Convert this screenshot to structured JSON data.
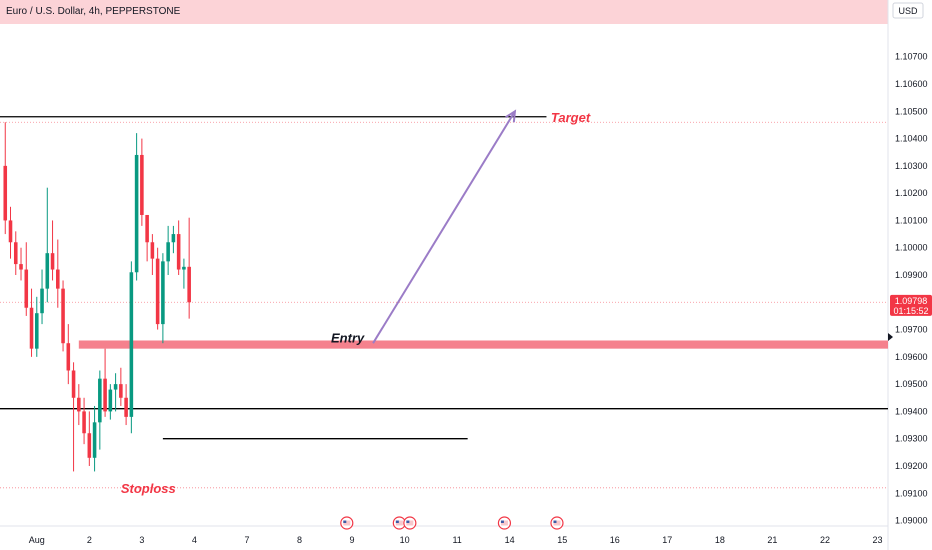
{
  "header": {
    "title": "Euro / U.S. Dollar, 4h, PEPPERSTONE",
    "currency": "USD",
    "banner_color": "#fcd3d7"
  },
  "price_label": {
    "price": "1.09798",
    "countdown": "01:15:52",
    "color": "#f23645"
  },
  "annotations": {
    "target": "Target",
    "entry": "Entry",
    "stoploss": "Stoploss",
    "target_color": "#f23645",
    "stoploss_color": "#f23645",
    "entry_color": "#131722",
    "arrow_color": "#9b7cc7",
    "zone_color": "#f5818d"
  },
  "event_icons": [
    {
      "name": "us-flag-icon",
      "x_index": 65
    },
    {
      "name": "us-flag-icon",
      "x_index": 75
    },
    {
      "name": "us-flag-icon",
      "x_index": 77
    },
    {
      "name": "us-flag-icon",
      "x_index": 95
    },
    {
      "name": "us-flag-icon",
      "x_index": 105
    }
  ],
  "chart_data": {
    "type": "candlestick",
    "title": "Euro / U.S. Dollar, 4h, PEPPERSTONE",
    "ylim": [
      1.0898,
      1.1082
    ],
    "yticks": [
      1.09,
      1.091,
      1.092,
      1.093,
      1.094,
      1.095,
      1.096,
      1.097,
      1.098,
      1.099,
      1.1,
      1.101,
      1.102,
      1.103,
      1.104,
      1.105,
      1.106,
      1.107
    ],
    "ytick_labels": [
      "1.09000",
      "1.09100",
      "1.09200",
      "1.09300",
      "1.09400",
      "1.09500",
      "1.09600",
      "1.09700",
      "1.09800",
      "1.09900",
      "1.10000",
      "1.10100",
      "1.10200",
      "1.10300",
      "1.10400",
      "1.10500",
      "1.10600",
      "1.10700"
    ],
    "xlim": [
      -1,
      168
    ],
    "xticks": [
      {
        "label": "Aug",
        "index": 6
      },
      {
        "label": "2",
        "index": 16
      },
      {
        "label": "3",
        "index": 26
      },
      {
        "label": "4",
        "index": 36
      },
      {
        "label": "7",
        "index": 46
      },
      {
        "label": "8",
        "index": 56
      },
      {
        "label": "9",
        "index": 66
      },
      {
        "label": "10",
        "index": 76
      },
      {
        "label": "11",
        "index": 86
      },
      {
        "label": "14",
        "index": 96
      },
      {
        "label": "15",
        "index": 106
      },
      {
        "label": "16",
        "index": 116
      },
      {
        "label": "17",
        "index": 126
      },
      {
        "label": "18",
        "index": 136
      },
      {
        "label": "21",
        "index": 146
      },
      {
        "label": "22",
        "index": 156
      },
      {
        "label": "23",
        "index": 166
      }
    ],
    "up_color": "#089981",
    "down_color": "#f23645",
    "candles": [
      {
        "o": 1.103,
        "h": 1.1046,
        "l": 1.1005,
        "c": 1.101
      },
      {
        "o": 1.101,
        "h": 1.1015,
        "l": 1.0996,
        "c": 1.1002
      },
      {
        "o": 1.1002,
        "h": 1.1006,
        "l": 1.099,
        "c": 1.0994
      },
      {
        "o": 1.0994,
        "h": 1.1,
        "l": 1.0988,
        "c": 1.0992
      },
      {
        "o": 1.0992,
        "h": 1.1002,
        "l": 1.0975,
        "c": 1.0978
      },
      {
        "o": 1.0978,
        "h": 1.0985,
        "l": 1.096,
        "c": 1.0963
      },
      {
        "o": 1.0963,
        "h": 1.0982,
        "l": 1.096,
        "c": 1.0976
      },
      {
        "o": 1.0976,
        "h": 1.0992,
        "l": 1.0972,
        "c": 1.0985
      },
      {
        "o": 1.0985,
        "h": 1.1022,
        "l": 1.098,
        "c": 1.0998
      },
      {
        "o": 1.0998,
        "h": 1.101,
        "l": 1.0988,
        "c": 1.0992
      },
      {
        "o": 1.0992,
        "h": 1.1003,
        "l": 1.0978,
        "c": 1.0985
      },
      {
        "o": 1.0985,
        "h": 1.0988,
        "l": 1.0962,
        "c": 1.0965
      },
      {
        "o": 1.0965,
        "h": 1.0972,
        "l": 1.095,
        "c": 1.0955
      },
      {
        "o": 1.0955,
        "h": 1.0958,
        "l": 1.0918,
        "c": 1.0945
      },
      {
        "o": 1.0945,
        "h": 1.095,
        "l": 1.0935,
        "c": 1.094
      },
      {
        "o": 1.094,
        "h": 1.0945,
        "l": 1.0928,
        "c": 1.0932
      },
      {
        "o": 1.0932,
        "h": 1.094,
        "l": 1.092,
        "c": 1.0923
      },
      {
        "o": 1.0923,
        "h": 1.0942,
        "l": 1.0918,
        "c": 1.0936
      },
      {
        "o": 1.0936,
        "h": 1.0955,
        "l": 1.0926,
        "c": 1.0952
      },
      {
        "o": 1.0952,
        "h": 1.0963,
        "l": 1.0938,
        "c": 1.094
      },
      {
        "o": 1.094,
        "h": 1.095,
        "l": 1.0937,
        "c": 1.0948
      },
      {
        "o": 1.0948,
        "h": 1.0954,
        "l": 1.094,
        "c": 1.095
      },
      {
        "o": 1.095,
        "h": 1.0956,
        "l": 1.0942,
        "c": 1.0945
      },
      {
        "o": 1.0945,
        "h": 1.095,
        "l": 1.0935,
        "c": 1.0938
      },
      {
        "o": 1.0938,
        "h": 1.0995,
        "l": 1.0932,
        "c": 1.0991
      },
      {
        "o": 1.0991,
        "h": 1.1042,
        "l": 1.0988,
        "c": 1.1034
      },
      {
        "o": 1.1034,
        "h": 1.104,
        "l": 1.1008,
        "c": 1.1012
      },
      {
        "o": 1.1012,
        "h": 1.1012,
        "l": 1.0995,
        "c": 1.1002
      },
      {
        "o": 1.1002,
        "h": 1.1005,
        "l": 1.099,
        "c": 1.0996
      },
      {
        "o": 1.0996,
        "h": 1.1,
        "l": 1.097,
        "c": 1.0972
      },
      {
        "o": 1.0972,
        "h": 1.0998,
        "l": 1.0965,
        "c": 1.0995
      },
      {
        "o": 1.0995,
        "h": 1.1008,
        "l": 1.099,
        "c": 1.1002
      },
      {
        "o": 1.1002,
        "h": 1.1008,
        "l": 1.0998,
        "c": 1.1005
      },
      {
        "o": 1.1005,
        "h": 1.101,
        "l": 1.099,
        "c": 1.0992
      },
      {
        "o": 1.0992,
        "h": 1.0996,
        "l": 1.0985,
        "c": 1.0993
      },
      {
        "o": 1.0993,
        "h": 1.1011,
        "l": 1.0974,
        "c": 1.098
      }
    ],
    "levels": [
      {
        "name": "target-level-line",
        "price": 1.1048,
        "from_index": -1,
        "to_index": 103,
        "color": "#000000"
      },
      {
        "name": "support-level-line",
        "price": 1.0941,
        "from_index": -1,
        "to_index": 168,
        "color": "#000000"
      },
      {
        "name": "stoploss-level-line",
        "price": 1.093,
        "from_index": 30,
        "to_index": 88,
        "color": "#000000"
      }
    ],
    "dotted_levels": [
      1.1046,
      1.098,
      1.0912
    ],
    "entry_zone": {
      "top": 1.0966,
      "bottom": 1.0963,
      "from_index": 14,
      "to_index": 168
    },
    "arrow": {
      "from_index": 70,
      "from_price": 1.0965,
      "to_index": 97,
      "to_price": 1.105
    }
  }
}
